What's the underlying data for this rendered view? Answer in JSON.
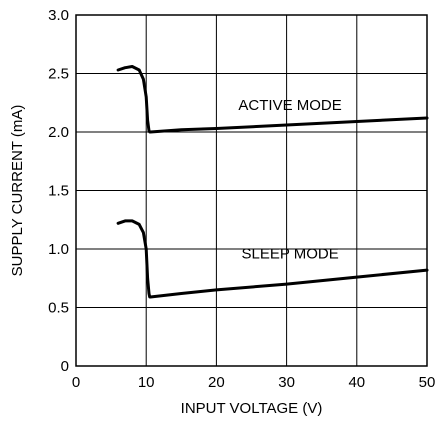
{
  "chart_data": {
    "type": "line",
    "xlabel": "INPUT VOLTAGE (V)",
    "ylabel": "SUPPLY CURRENT (mA)",
    "xlim": [
      0,
      50
    ],
    "ylim": [
      0,
      3.0
    ],
    "x_ticks": [
      0,
      10,
      20,
      30,
      40,
      50
    ],
    "x_tick_labels": [
      "0",
      "10",
      "20",
      "30",
      "40",
      "50"
    ],
    "y_ticks": [
      0,
      0.5,
      1.0,
      1.5,
      2.0,
      2.5,
      3.0
    ],
    "y_tick_labels": [
      "0",
      "0.5",
      "1.0",
      "1.5",
      "2.0",
      "2.5",
      "3.0"
    ],
    "grid": true,
    "series": [
      {
        "name": "ACTIVE MODE",
        "x": [
          6,
          7,
          8,
          9,
          9.6,
          10.0,
          10.2,
          10.4,
          10.5,
          10.6,
          15,
          20,
          30,
          40,
          50
        ],
        "y": [
          2.53,
          2.55,
          2.56,
          2.53,
          2.45,
          2.3,
          2.1,
          2.01,
          2.0,
          2.0,
          2.02,
          2.03,
          2.06,
          2.09,
          2.12
        ]
      },
      {
        "name": "SLEEP MODE",
        "x": [
          6,
          7,
          8,
          9,
          9.6,
          10.0,
          10.2,
          10.4,
          10.5,
          10.6,
          15,
          20,
          30,
          40,
          50
        ],
        "y": [
          1.22,
          1.24,
          1.24,
          1.21,
          1.14,
          1.0,
          0.75,
          0.62,
          0.59,
          0.59,
          0.62,
          0.65,
          0.7,
          0.76,
          0.82
        ]
      }
    ],
    "annotations": [
      {
        "text": "ACTIVE MODE",
        "x": 30.5,
        "y": 2.19
      },
      {
        "text": "SLEEP MODE",
        "x": 30.5,
        "y": 0.92
      }
    ]
  }
}
